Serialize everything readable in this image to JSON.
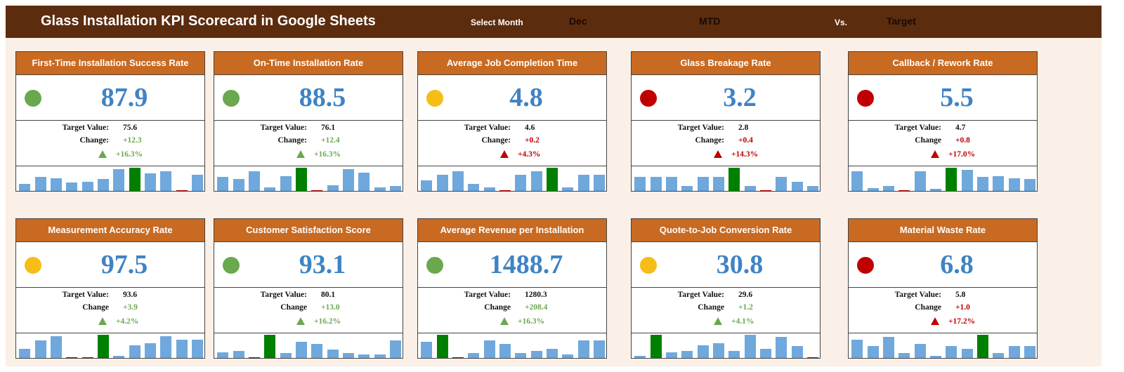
{
  "header": {
    "title": "Glass Installation KPI Scorecard in Google Sheets",
    "select_month_label": "Select Month",
    "month": "Dec",
    "period": "MTD",
    "vs_label": "Vs.",
    "comparison": "Target"
  },
  "colors": {
    "header_bg": "#5c2c0e",
    "card_header_bg": "#c96a22",
    "value_blue": "#3f83c4",
    "good_green": "#6aa84f",
    "bad_red": "#c00000",
    "warn_yellow": "#f6bd16",
    "spark_bar": "#6fa8dc",
    "spark_highlight": "#008000"
  },
  "cards": [
    {
      "title": "First-Time Installation Success Rate",
      "value": "87.9",
      "status": "green",
      "target_label": "Target Value:",
      "target": "75.6",
      "change_label": "Change:",
      "change": "+12.3",
      "pct": "+16.3%",
      "trend": "good",
      "spark": [
        0.3,
        0.6,
        0.55,
        0.35,
        0.4,
        0.5,
        0.95,
        1.0,
        0.75,
        0.85,
        0.05,
        0.7
      ],
      "highlight": 7
    },
    {
      "title": "On-Time Installation Rate",
      "value": "88.5",
      "status": "green",
      "target_label": "Target Value:",
      "target": "76.1",
      "change_label": "Change:",
      "change": "+12.4",
      "pct": "+16.3%",
      "trend": "good",
      "spark": [
        0.6,
        0.5,
        0.85,
        0.15,
        0.65,
        1.0,
        0.05,
        0.25,
        0.95,
        0.8,
        0.15,
        0.2
      ],
      "highlight": 5
    },
    {
      "title": "Average Job Completion Time",
      "value": "4.8",
      "status": "yellow",
      "target_label": "Target Value:",
      "target": "4.6",
      "change_label": "Change:",
      "change": "+0.2",
      "pct": "+4.3%",
      "trend": "bad",
      "spark": [
        0.45,
        0.7,
        0.85,
        0.3,
        0.15,
        0.05,
        0.7,
        0.85,
        1.0,
        0.15,
        0.7,
        0.7
      ],
      "highlight": 8
    },
    {
      "title": "Glass Breakage Rate",
      "value": "3.2",
      "status": "red",
      "target_label": "Target Value:",
      "target": "2.8",
      "change_label": "Change:",
      "change": "+0.4",
      "pct": "+14.3%",
      "trend": "bad",
      "spark": [
        0.6,
        0.6,
        0.6,
        0.2,
        0.6,
        0.6,
        1.0,
        0.2,
        0.05,
        0.6,
        0.4,
        0.2
      ],
      "highlight": 6
    },
    {
      "title": "Callback / Rework Rate",
      "value": "5.5",
      "status": "red",
      "target_label": "Target Value:",
      "target": "4.7",
      "change_label": "Change",
      "change": "+0.8",
      "pct": "+17.0%",
      "trend": "bad",
      "spark": [
        0.85,
        0.12,
        0.2,
        0.05,
        0.85,
        0.1,
        1.0,
        0.9,
        0.6,
        0.65,
        0.55,
        0.5
      ],
      "highlight": 6
    },
    {
      "title": "Measurement Accuracy Rate",
      "value": "97.5",
      "status": "yellow",
      "target_label": "Target Value:",
      "target": "93.6",
      "change_label": "Change",
      "change": "+3.9",
      "pct": "+4.2%",
      "trend": "good",
      "spark": [
        0.4,
        0.75,
        0.95,
        0.05,
        0.05,
        1.0,
        0.1,
        0.55,
        0.65,
        0.95,
        0.8,
        0.8
      ],
      "highlight": 5
    },
    {
      "title": "Customer Satisfaction Score",
      "value": "93.1",
      "status": "green",
      "target_label": "Target Value:",
      "target": "80.1",
      "change_label": "Change",
      "change": "+13.0",
      "pct": "+16.2%",
      "trend": "good",
      "spark": [
        0.25,
        0.3,
        0.05,
        1.0,
        0.2,
        0.7,
        0.6,
        0.35,
        0.2,
        0.15,
        0.15,
        0.75
      ],
      "highlight": 3
    },
    {
      "title": "Average Revenue per Installation",
      "value": "1488.7",
      "status": "green",
      "target_label": "Target Value:",
      "target": "1280.3",
      "change_label": "Change",
      "change": "+208.4",
      "pct": "+16.3%",
      "trend": "good",
      "spark": [
        0.7,
        1.0,
        0.05,
        0.2,
        0.75,
        0.6,
        0.2,
        0.3,
        0.4,
        0.15,
        0.75,
        0.75
      ],
      "highlight": 1
    },
    {
      "title": "Quote-to-Job Conversion Rate",
      "value": "30.8",
      "status": "yellow",
      "target_label": "Target Value:",
      "target": "29.6",
      "change_label": "Change",
      "change": "+1.2",
      "pct": "+4.1%",
      "trend": "good",
      "spark": [
        0.1,
        1.0,
        0.25,
        0.3,
        0.55,
        0.65,
        0.3,
        1.0,
        0.4,
        0.9,
        0.5,
        0.05
      ],
      "highlight": 1
    },
    {
      "title": "Material Waste Rate",
      "value": "6.8",
      "status": "red",
      "target_label": "Target Value:",
      "target": "5.8",
      "change_label": "Change",
      "change": "+1.0",
      "pct": "+17.2%",
      "trend": "bad",
      "spark": [
        0.8,
        0.5,
        0.9,
        0.2,
        0.6,
        0.1,
        0.5,
        0.4,
        1.0,
        0.2,
        0.5,
        0.5
      ],
      "highlight": 8
    }
  ]
}
